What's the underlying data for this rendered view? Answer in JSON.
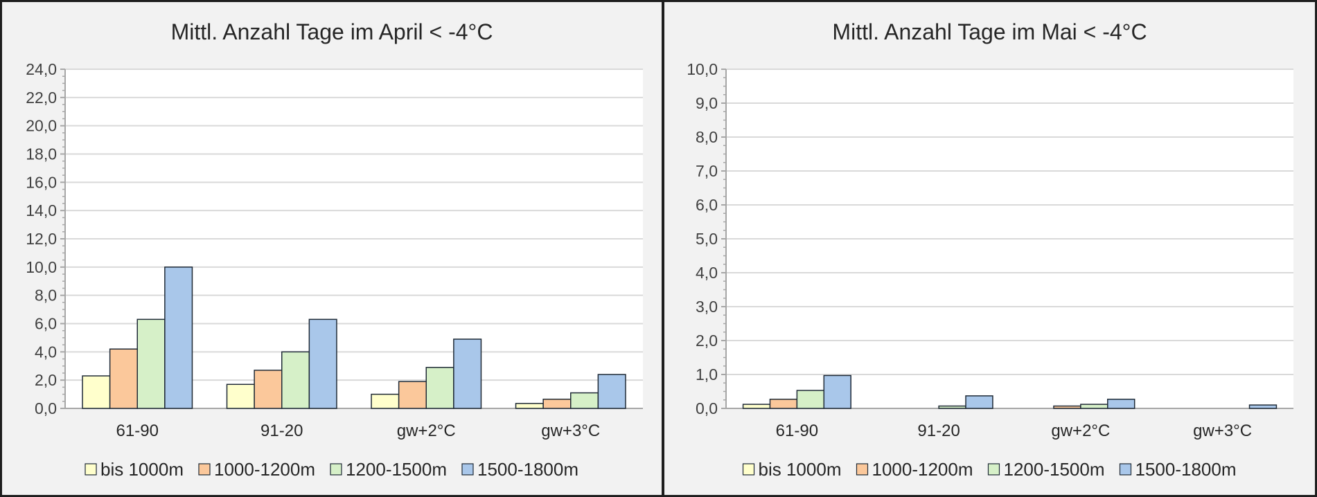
{
  "chart_data": [
    {
      "type": "bar",
      "title": "Mittl. Anzahl Tage im April < -4°C",
      "xlabel": "",
      "ylabel": "",
      "categories": [
        "61-90",
        "91-20",
        "gw+2°C",
        "gw+3°C"
      ],
      "ylim": [
        0,
        24
      ],
      "yticks": [
        0,
        2,
        4,
        6,
        8,
        10,
        12,
        14,
        16,
        18,
        20,
        22,
        24
      ],
      "ytick_labels": [
        "0,0",
        "2,0",
        "4,0",
        "6,0",
        "8,0",
        "10,0",
        "12,0",
        "14,0",
        "16,0",
        "18,0",
        "20,0",
        "22,0",
        "24,0"
      ],
      "grid": true,
      "legend_position": "bottom",
      "series": [
        {
          "name": "bis 1000m",
          "color": "#ffffcc",
          "values": [
            2.3,
            1.7,
            1.0,
            0.35
          ]
        },
        {
          "name": "1000-1200m",
          "color": "#fbc89b",
          "values": [
            4.2,
            2.7,
            1.9,
            0.65
          ]
        },
        {
          "name": "1200-1500m",
          "color": "#d6f0c8",
          "values": [
            6.3,
            4.0,
            2.9,
            1.1
          ]
        },
        {
          "name": "1500-1800m",
          "color": "#a9c7ea",
          "values": [
            10.0,
            6.3,
            4.9,
            2.4
          ]
        }
      ]
    },
    {
      "type": "bar",
      "title": "Mittl. Anzahl Tage im Mai < -4°C",
      "xlabel": "",
      "ylabel": "",
      "categories": [
        "61-90",
        "91-20",
        "gw+2°C",
        "gw+3°C"
      ],
      "ylim": [
        0,
        10
      ],
      "yticks": [
        0,
        1,
        2,
        3,
        4,
        5,
        6,
        7,
        8,
        9,
        10
      ],
      "ytick_labels": [
        "0,0",
        "1,0",
        "2,0",
        "3,0",
        "4,0",
        "5,0",
        "6,0",
        "7,0",
        "8,0",
        "9,0",
        "10,0"
      ],
      "grid": true,
      "legend_position": "bottom",
      "series": [
        {
          "name": "bis 1000m",
          "color": "#ffffcc",
          "values": [
            0.12,
            0.0,
            0.0,
            0.0
          ]
        },
        {
          "name": "1000-1200m",
          "color": "#fbc89b",
          "values": [
            0.27,
            0.0,
            0.07,
            0.0
          ]
        },
        {
          "name": "1200-1500m",
          "color": "#d6f0c8",
          "values": [
            0.53,
            0.07,
            0.12,
            0.0
          ]
        },
        {
          "name": "1500-1800m",
          "color": "#a9c7ea",
          "values": [
            0.97,
            0.37,
            0.27,
            0.1
          ]
        }
      ]
    }
  ]
}
